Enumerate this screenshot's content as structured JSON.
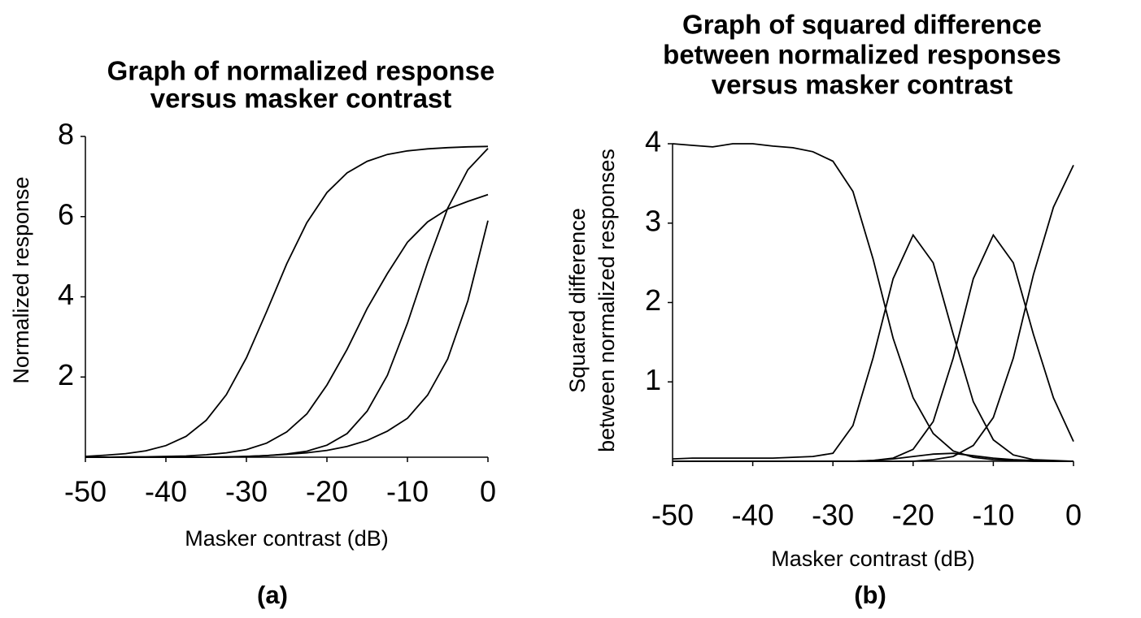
{
  "chart_data": [
    {
      "type": "line",
      "title": [
        "Graph of normalized response",
        "versus masker contrast"
      ],
      "xlabel": "Masker contrast (dB)",
      "ylabel": [
        "Normalized response"
      ],
      "caption": "(a)",
      "x": [
        -50,
        -47.5,
        -45,
        -42.5,
        -40,
        -37.5,
        -35,
        -32.5,
        -30,
        -27.5,
        -25,
        -22.5,
        -20,
        -17.5,
        -15,
        -12.5,
        -10,
        -7.5,
        -5,
        -2.5,
        0
      ],
      "xlim": [
        -50,
        0
      ],
      "xticks": [
        -50,
        -40,
        -30,
        -20,
        -10,
        0
      ],
      "ylim": [
        0,
        8
      ],
      "yticks": [
        2,
        4,
        6,
        8
      ],
      "grid": false,
      "series": [
        {
          "color": "#000000",
          "values": [
            0.02,
            0.05,
            0.09,
            0.16,
            0.29,
            0.52,
            0.92,
            1.56,
            2.48,
            3.63,
            4.82,
            5.85,
            6.6,
            7.09,
            7.38,
            7.55,
            7.64,
            7.69,
            7.72,
            7.74,
            7.75
          ]
        },
        {
          "color": "#000000",
          "values": [
            0,
            0,
            0.01,
            0.01,
            0.02,
            0.03,
            0.06,
            0.11,
            0.19,
            0.35,
            0.63,
            1.08,
            1.8,
            2.69,
            3.71,
            4.58,
            5.36,
            5.87,
            6.19,
            6.38,
            6.55
          ]
        },
        {
          "color": "#000000",
          "values": [
            0,
            0,
            0,
            0,
            0,
            0,
            0,
            0.01,
            0.02,
            0.04,
            0.08,
            0.15,
            0.3,
            0.59,
            1.15,
            2.04,
            3.34,
            4.85,
            6.21,
            7.17,
            7.7
          ]
        },
        {
          "color": "#000000",
          "values": [
            0,
            0,
            0,
            0,
            0,
            0,
            0,
            0,
            0.02,
            0.04,
            0.07,
            0.11,
            0.17,
            0.27,
            0.42,
            0.65,
            0.97,
            1.55,
            2.45,
            3.9,
            5.9
          ]
        }
      ]
    },
    {
      "type": "line",
      "title": [
        "Graph of squared difference",
        "between normalized responses",
        "versus masker contrast"
      ],
      "xlabel": "Masker contrast (dB)",
      "ylabel": [
        "Squared difference",
        "between normalized responses"
      ],
      "caption": "(b)",
      "x": [
        -50,
        -47.5,
        -45,
        -42.5,
        -40,
        -37.5,
        -35,
        -32.5,
        -30,
        -27.5,
        -25,
        -22.5,
        -20,
        -17.5,
        -15,
        -12.5,
        -10,
        -7.5,
        -5,
        -2.5,
        0
      ],
      "xlim": [
        -50,
        0
      ],
      "xticks": [
        -50,
        -40,
        -30,
        -20,
        -10,
        0
      ],
      "ylim": [
        0,
        4
      ],
      "yticks": [
        1,
        2,
        3,
        4
      ],
      "grid": false,
      "series": [
        {
          "color": "#000000",
          "values": [
            4.0,
            3.98,
            3.96,
            4.0,
            4.0,
            3.97,
            3.95,
            3.9,
            3.78,
            3.4,
            2.55,
            1.55,
            0.8,
            0.35,
            0.13,
            0.05,
            0.02,
            0.01,
            0,
            0,
            0
          ]
        },
        {
          "color": "#000000",
          "values": [
            0.03,
            0.04,
            0.04,
            0.04,
            0.04,
            0.04,
            0.05,
            0.06,
            0.1,
            0.45,
            1.3,
            2.3,
            2.85,
            2.5,
            1.6,
            0.75,
            0.27,
            0.08,
            0.02,
            0.01,
            0
          ]
        },
        {
          "color": "#000000",
          "values": [
            0,
            0,
            0,
            0,
            0,
            0,
            0,
            0,
            0,
            0,
            0.01,
            0.04,
            0.15,
            0.5,
            1.3,
            2.3,
            2.85,
            2.5,
            1.6,
            0.8,
            0.25
          ]
        },
        {
          "color": "#000000",
          "values": [
            0,
            0,
            0,
            0,
            0,
            0,
            0,
            0,
            0,
            0,
            0,
            0,
            0,
            0.02,
            0.06,
            0.2,
            0.55,
            1.3,
            2.35,
            3.2,
            3.73
          ]
        },
        {
          "color": "#000000",
          "values": [
            0,
            0,
            0,
            0,
            0,
            0,
            0,
            0,
            0,
            0,
            0.01,
            0.03,
            0.06,
            0.09,
            0.1,
            0.07,
            0.04,
            0.02,
            0.01,
            0,
            0
          ]
        }
      ]
    }
  ]
}
